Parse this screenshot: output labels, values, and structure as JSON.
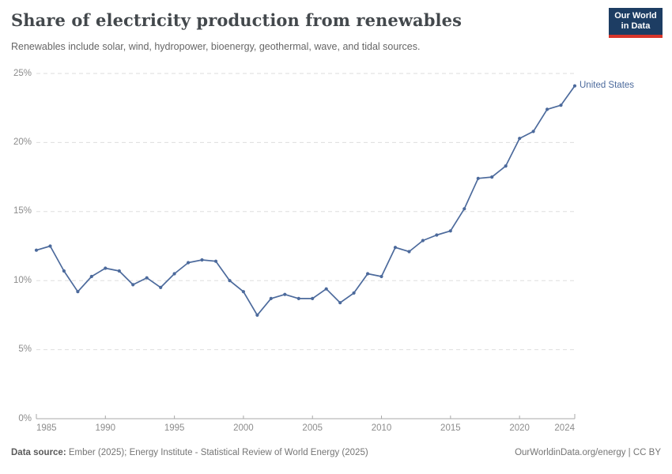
{
  "header": {
    "title": "Share of electricity production from renewables",
    "subtitle": "Renewables include solar, wind, hydropower, bioenergy, geothermal, wave, and tidal sources.",
    "logo": {
      "line1": "Our World",
      "line2": "in Data",
      "bg_color": "#1d3d63",
      "accent_color": "#d8352a"
    }
  },
  "chart_data": {
    "type": "line",
    "title": "Share of electricity production from renewables",
    "subtitle": "Renewables include solar, wind, hydropower, bioenergy, geothermal, wave, and tidal sources.",
    "entity_label": "United States",
    "xlabel": "",
    "ylabel": "",
    "xlim": [
      1985,
      2024
    ],
    "ylim": [
      0,
      25
    ],
    "grid": "horizontal-dashed",
    "legend_position": "end-of-line",
    "line_color": "#4c6a9c",
    "x": [
      1985,
      1986,
      1987,
      1988,
      1989,
      1990,
      1991,
      1992,
      1993,
      1994,
      1995,
      1996,
      1997,
      1998,
      1999,
      2000,
      2001,
      2002,
      2003,
      2004,
      2005,
      2006,
      2007,
      2008,
      2009,
      2010,
      2011,
      2012,
      2013,
      2014,
      2015,
      2016,
      2017,
      2018,
      2019,
      2020,
      2021,
      2022,
      2023,
      2024
    ],
    "series": [
      {
        "name": "United States",
        "color": "#4c6a9c",
        "values": [
          12.2,
          12.5,
          10.7,
          9.2,
          10.3,
          10.9,
          10.7,
          9.7,
          10.2,
          9.5,
          10.5,
          11.3,
          11.5,
          11.4,
          10.0,
          9.2,
          7.5,
          8.7,
          9.0,
          8.7,
          8.7,
          9.4,
          8.4,
          9.1,
          10.5,
          10.3,
          12.4,
          12.1,
          12.9,
          13.3,
          13.6,
          15.2,
          17.4,
          17.5,
          18.3,
          20.3,
          20.8,
          22.4,
          22.7,
          24.1
        ]
      }
    ],
    "yticks": [
      {
        "value": 0,
        "label": "0%"
      },
      {
        "value": 5,
        "label": "5%"
      },
      {
        "value": 10,
        "label": "10%"
      },
      {
        "value": 15,
        "label": "15%"
      },
      {
        "value": 20,
        "label": "20%"
      },
      {
        "value": 25,
        "label": "25%"
      }
    ],
    "xticks": [
      {
        "year": 1985,
        "label": "1985",
        "align": "left"
      },
      {
        "year": 1990,
        "label": "1990",
        "align": "center"
      },
      {
        "year": 1995,
        "label": "1995",
        "align": "center"
      },
      {
        "year": 2000,
        "label": "2000",
        "align": "center"
      },
      {
        "year": 2005,
        "label": "2005",
        "align": "center"
      },
      {
        "year": 2010,
        "label": "2010",
        "align": "center"
      },
      {
        "year": 2015,
        "label": "2015",
        "align": "center"
      },
      {
        "year": 2020,
        "label": "2020",
        "align": "center"
      },
      {
        "year": 2024,
        "label": "2024",
        "align": "right"
      }
    ]
  },
  "footer": {
    "datasource_label": "Data source:",
    "datasource_text": " Ember (2025); Energy Institute - Statistical Review of World Energy (2025)",
    "right_text": "OurWorldinData.org/energy | CC BY"
  }
}
